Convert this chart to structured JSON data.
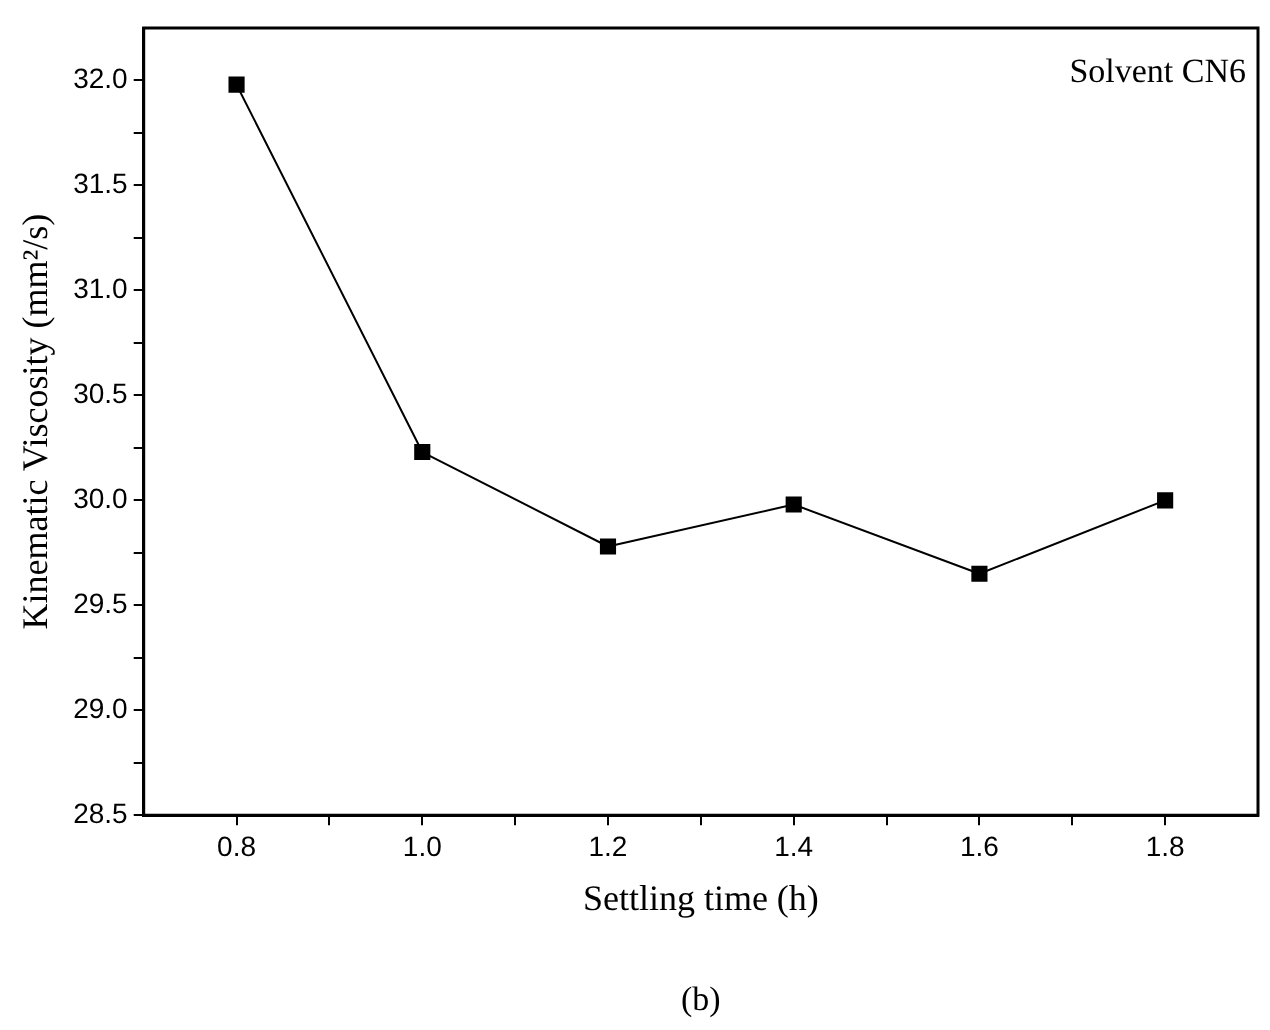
{
  "chart_data": {
    "type": "line",
    "xlabel": "Settling time (h)",
    "ylabel": "Kinematic Viscosity (mm²/s)",
    "x": [
      0.8,
      1.0,
      1.2,
      1.4,
      1.6,
      1.8
    ],
    "series": [
      {
        "color": "#000000",
        "values": [
          31.98,
          30.23,
          29.78,
          29.98,
          29.65,
          30.0
        ]
      }
    ],
    "xlim": [
      0.7,
      1.9
    ],
    "xticks": [
      {
        "value": 0.8,
        "label": "0.8"
      },
      {
        "value": 0.9,
        "label": null
      },
      {
        "value": 1.0,
        "label": "1.0"
      },
      {
        "value": 1.1,
        "label": null
      },
      {
        "value": 1.2,
        "label": "1.2"
      },
      {
        "value": 1.3,
        "label": null
      },
      {
        "value": 1.4,
        "label": "1.4"
      },
      {
        "value": 1.5,
        "label": null
      },
      {
        "value": 1.6,
        "label": "1.6"
      },
      {
        "value": 1.7,
        "label": null
      },
      {
        "value": 1.8,
        "label": "1.8"
      }
    ],
    "ylim": [
      28.5,
      32.25
    ],
    "yticks": [
      {
        "value": 28.5,
        "label": "28.5"
      },
      {
        "value": 28.75,
        "label": null
      },
      {
        "value": 29.0,
        "label": "29.0"
      },
      {
        "value": 29.25,
        "label": null
      },
      {
        "value": 29.5,
        "label": "29.5"
      },
      {
        "value": 29.75,
        "label": null
      },
      {
        "value": 30.0,
        "label": "30.0"
      },
      {
        "value": 30.25,
        "label": null
      },
      {
        "value": 30.5,
        "label": "30.5"
      },
      {
        "value": 30.75,
        "label": null
      },
      {
        "value": 31.0,
        "label": "31.0"
      },
      {
        "value": 31.25,
        "label": null
      },
      {
        "value": 31.5,
        "label": "31.5"
      },
      {
        "value": 31.75,
        "label": null
      },
      {
        "value": 32.0,
        "label": "32.0"
      }
    ],
    "grid": false,
    "legend": false,
    "marker": "square",
    "line_style": "solid",
    "annotations": [
      "Solvent CN6",
      "(b)"
    ]
  }
}
